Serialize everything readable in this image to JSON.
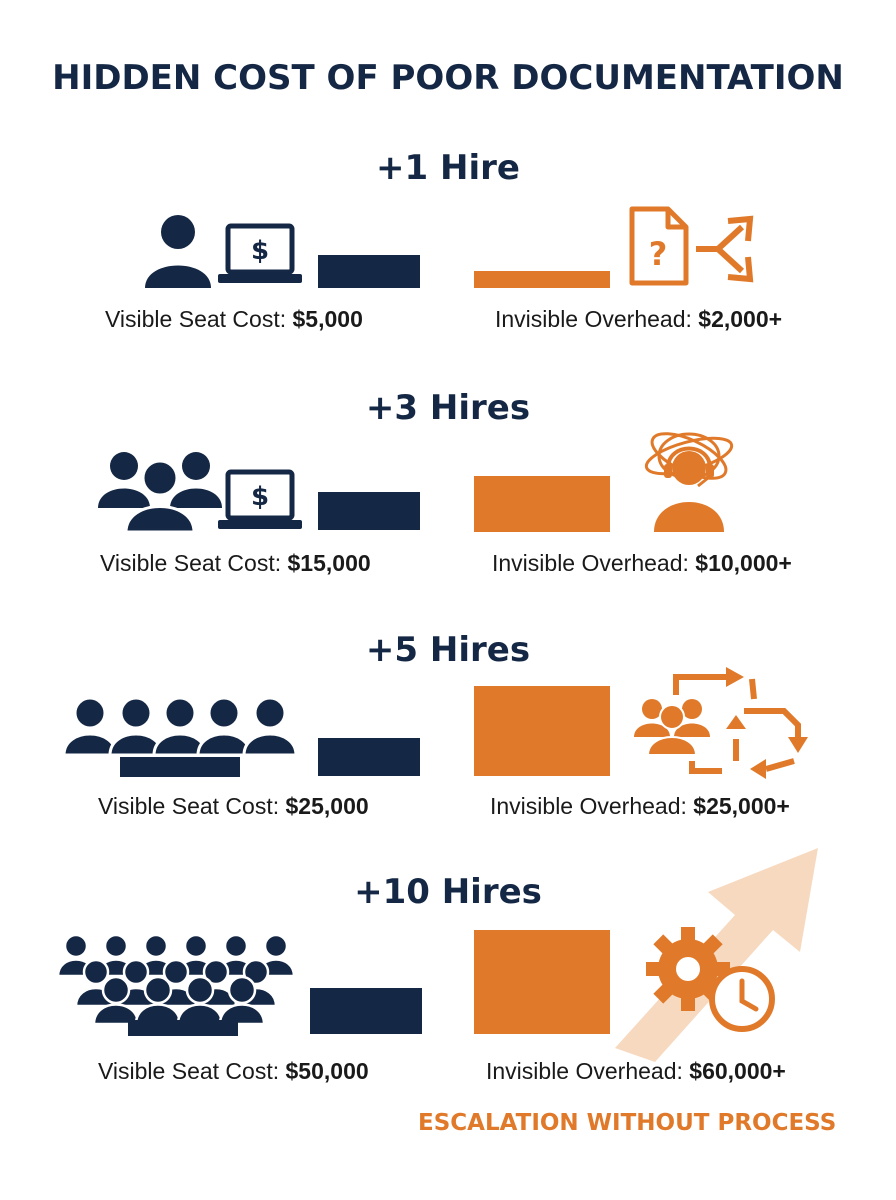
{
  "title": "HIDDEN COST OF POOR DOCUMENTATION",
  "colors": {
    "navy": "#142744",
    "orange": "#e07a2a",
    "light_orange": "#f6d9bf"
  },
  "tiers": [
    {
      "heading": "+1 Hire",
      "visible_label": "Visible Seat Cost:",
      "visible_value": "$5,000",
      "overhead_label": "Invisible Overhead:",
      "overhead_value": "$2,000+",
      "icons": [
        "person-icon",
        "laptop-dollar-icon",
        "document-question-icon",
        "split-arrows-icon"
      ]
    },
    {
      "heading": "+3 Hires",
      "visible_label": "Visible Seat Cost:",
      "visible_value": "$15,000",
      "overhead_label": "Invisible Overhead:",
      "overhead_value": "$10,000+",
      "icons": [
        "team-three-icon",
        "laptop-dollar-icon",
        "support-headset-tangled-icon"
      ]
    },
    {
      "heading": "+5 Hires",
      "visible_label": "Visible Seat Cost:",
      "visible_value": "$25,000",
      "overhead_label": "Invisible Overhead:",
      "overhead_value": "$25,000+",
      "icons": [
        "team-five-icon",
        "team-cycle-arrows-icon"
      ]
    },
    {
      "heading": "+10 Hires",
      "visible_label": "Visible Seat Cost:",
      "visible_value": "$50,000",
      "overhead_label": "Invisible Overhead:",
      "overhead_value": "$60,000+",
      "icons": [
        "team-crowd-icon",
        "gear-clock-icon",
        "rising-arrow-icon"
      ]
    }
  ],
  "footer": "ESCALATION WITHOUT PROCESS"
}
